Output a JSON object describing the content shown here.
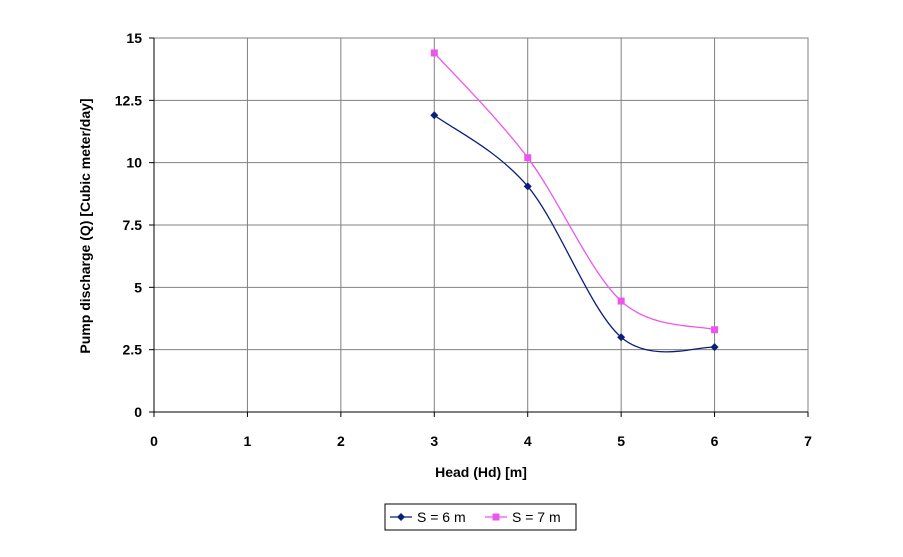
{
  "chart_data": {
    "type": "line",
    "title": "",
    "xlabel": "Head (Hd) [m]",
    "ylabel": "Pump discharge (Q) [Cubic meter/day]",
    "xlim": [
      0,
      7
    ],
    "ylim": [
      0,
      15
    ],
    "x_ticks": [
      "0",
      "1",
      "2",
      "3",
      "4",
      "5",
      "6",
      "7"
    ],
    "y_ticks": [
      "0",
      "2.5",
      "5",
      "7.5",
      "10",
      "12.5",
      "15"
    ],
    "grid": true,
    "smooth": true,
    "legend_position": "bottom",
    "series": [
      {
        "name": "S = 6 m",
        "color": "#0a1f7a",
        "marker": "diamond",
        "x": [
          3,
          4,
          5,
          6
        ],
        "y": [
          11.9,
          9.05,
          3.0,
          2.6
        ]
      },
      {
        "name": "S = 7 m",
        "color": "#ee55ee",
        "marker": "square",
        "x": [
          3,
          4,
          5,
          6
        ],
        "y": [
          14.4,
          10.2,
          4.45,
          3.3
        ]
      }
    ]
  }
}
